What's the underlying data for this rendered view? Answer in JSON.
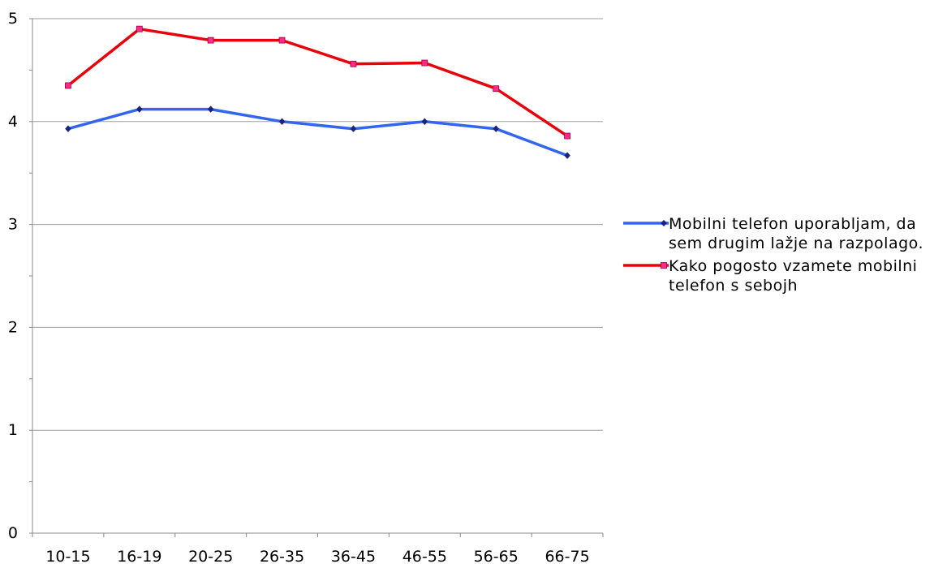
{
  "chart_data": {
    "type": "line",
    "categories": [
      "10-15",
      "16-19",
      "20-25",
      "26-35",
      "36-45",
      "46-55",
      "56-65",
      "66-75"
    ],
    "series": [
      {
        "name": "Mobilni telefon uporabljam, da sem drugim lažje na razpolago.",
        "color": "#3366ee",
        "marker_color": "#1a237e",
        "marker": "diamond",
        "values": [
          3.93,
          4.12,
          4.12,
          4.0,
          3.93,
          4.0,
          3.93,
          3.67
        ]
      },
      {
        "name": "Kako pogosto vzamete mobilni telefon s sebojh",
        "color": "#e8000b",
        "marker_color": "#ff2a8a",
        "marker": "square",
        "values": [
          4.35,
          4.9,
          4.79,
          4.79,
          4.56,
          4.57,
          4.32,
          3.86
        ]
      }
    ],
    "ylim": [
      0,
      5
    ],
    "yticks": [
      0,
      1,
      2,
      3,
      4,
      5
    ],
    "grid": true,
    "legend_position": "right",
    "title": "",
    "xlabel": "",
    "ylabel": ""
  }
}
